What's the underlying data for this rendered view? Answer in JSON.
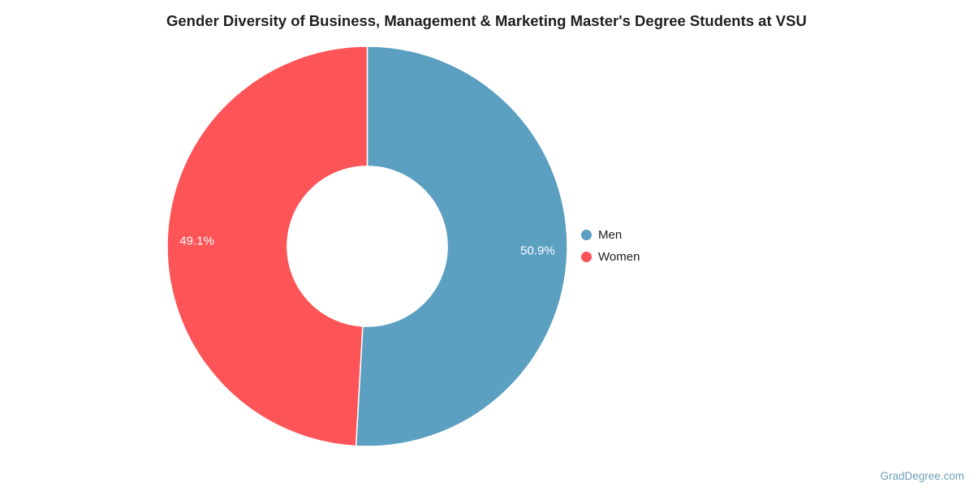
{
  "chart_data": {
    "type": "pie",
    "subtype": "donut",
    "title": "Gender Diversity of Business, Management & Marketing Master's Degree Students at VSU",
    "categories": [
      "Men",
      "Women"
    ],
    "values": [
      50.9,
      49.1
    ],
    "value_labels": [
      "50.9%",
      "49.1%"
    ],
    "colors": [
      "#5B9FC1",
      "#FC5457"
    ],
    "label_text_color": "#FFFFFF",
    "donut_hole_ratio": 0.4,
    "start_angle_deg": 0,
    "direction": "clockwise",
    "legend_position": "right",
    "background": "#FFFFFF"
  },
  "legend": {
    "items": [
      {
        "label": "Men",
        "color": "#5B9FC1"
      },
      {
        "label": "Women",
        "color": "#FC5457"
      }
    ]
  },
  "footer": {
    "watermark": "GradDegree.com",
    "color": "#6D9FB5"
  }
}
